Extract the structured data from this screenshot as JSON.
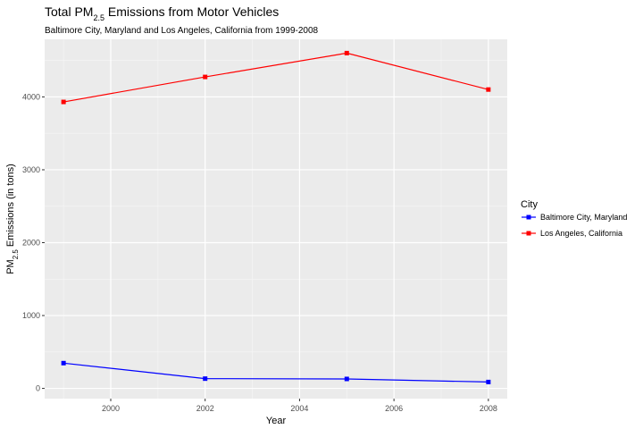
{
  "chart_data": {
    "type": "line",
    "title": "Total PM",
    "title_subscript": "2.5",
    "title_suffix": " Emissions from Motor Vehicles",
    "subtitle": "Baltimore City, Maryland and Los Angeles, California from 1999-2008",
    "xlabel": "Year",
    "ylabel_prefix": "PM",
    "ylabel_subscript": "2.5",
    "ylabel_suffix": " Emissions (in tons)",
    "x": [
      1999,
      2002,
      2005,
      2008
    ],
    "xlim": [
      1998.6,
      2008.4
    ],
    "ylim": [
      -140,
      4790
    ],
    "xticks": [
      2000,
      2002,
      2004,
      2006,
      2008
    ],
    "xtick_labels": [
      "2000",
      "2002",
      "2004",
      "2006",
      "2008"
    ],
    "yticks": [
      0,
      1000,
      2000,
      3000,
      4000
    ],
    "ytick_labels": [
      "0",
      "1000",
      "2000",
      "3000",
      "4000"
    ],
    "grid": true,
    "legend": {
      "title": "City",
      "placement": "right"
    },
    "series": [
      {
        "name": "Baltimore City, Maryland",
        "color": "#0000ff",
        "values": [
          347,
          134,
          130,
          88
        ]
      },
      {
        "name": "Los Angeles, California",
        "color": "#ff0000",
        "values": [
          3931,
          4274,
          4601,
          4101
        ]
      }
    ]
  }
}
